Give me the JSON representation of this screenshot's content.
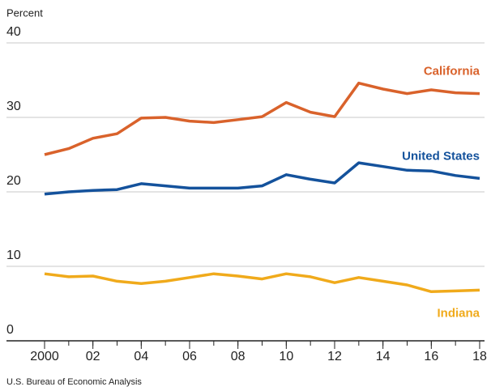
{
  "chart_data": {
    "type": "line",
    "y_label": "Percent",
    "source": "U.S. Bureau of Economic Analysis",
    "x": [
      2000,
      2001,
      2002,
      2003,
      2004,
      2005,
      2006,
      2007,
      2008,
      2009,
      2010,
      2011,
      2012,
      2013,
      2014,
      2015,
      2016,
      2017,
      2018
    ],
    "series": [
      {
        "name": "California",
        "color": "#d9622b",
        "values": [
          25.0,
          25.8,
          27.2,
          27.8,
          29.9,
          30.0,
          29.5,
          29.3,
          29.7,
          30.1,
          32.0,
          30.7,
          30.1,
          34.6,
          33.8,
          33.2,
          33.7,
          33.3,
          33.2
        ]
      },
      {
        "name": "United States",
        "color": "#14529c",
        "values": [
          19.7,
          20.0,
          20.2,
          20.3,
          21.1,
          20.8,
          20.5,
          20.5,
          20.5,
          20.8,
          22.3,
          21.7,
          21.2,
          23.9,
          23.4,
          22.9,
          22.8,
          22.2,
          21.8
        ]
      },
      {
        "name": "Indiana",
        "color": "#f0aa1b",
        "values": [
          9.0,
          8.6,
          8.7,
          8.0,
          7.7,
          8.0,
          8.5,
          9.0,
          8.7,
          8.3,
          9.0,
          8.6,
          7.8,
          8.5,
          8.0,
          7.5,
          6.6,
          6.7,
          6.8
        ]
      }
    ],
    "xlim": [
      2000,
      2018
    ],
    "xticks": [
      {
        "value": 2000,
        "label": "2000"
      },
      {
        "value": 2002,
        "label": "02"
      },
      {
        "value": 2004,
        "label": "04"
      },
      {
        "value": 2006,
        "label": "06"
      },
      {
        "value": 2008,
        "label": "08"
      },
      {
        "value": 2010,
        "label": "10"
      },
      {
        "value": 2012,
        "label": "12"
      },
      {
        "value": 2014,
        "label": "14"
      },
      {
        "value": 2016,
        "label": "16"
      },
      {
        "value": 2018,
        "label": "18"
      }
    ],
    "ylim": [
      0,
      40
    ],
    "yticks": [
      0,
      10,
      20,
      30,
      40
    ],
    "grid": true
  }
}
